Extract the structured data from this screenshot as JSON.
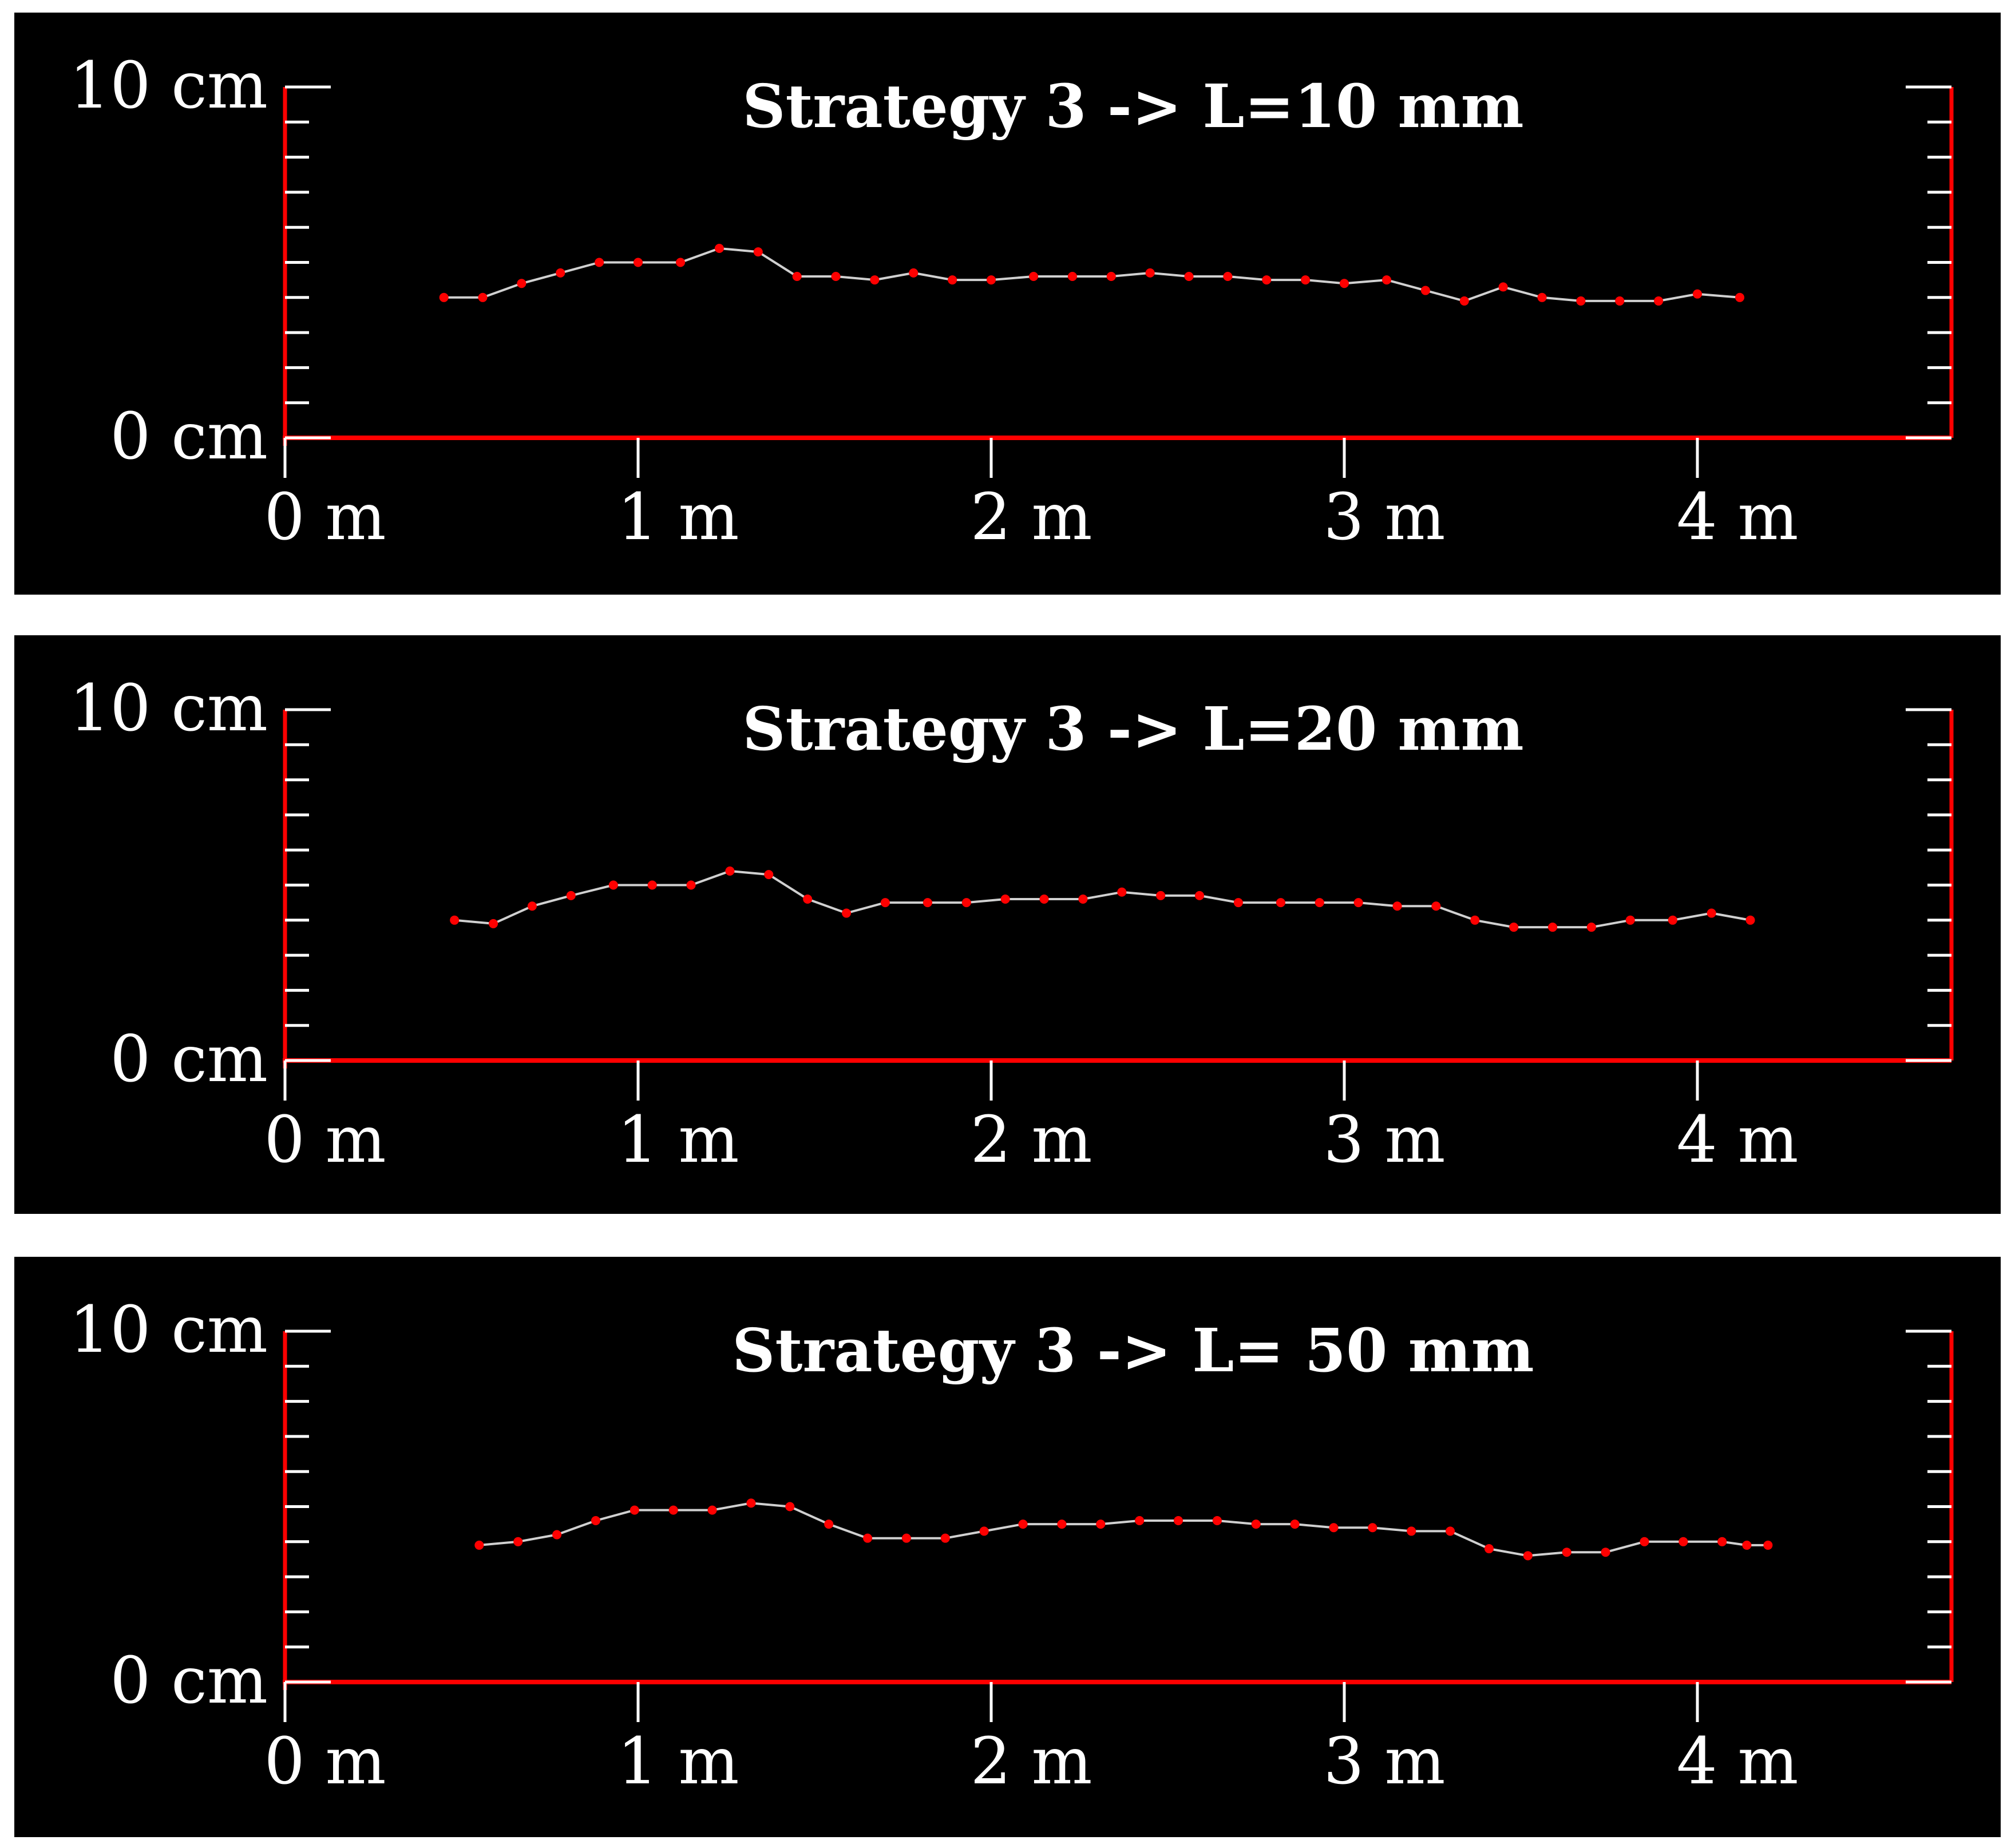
{
  "colors": {
    "background": "#000000",
    "axis": "#ff0000",
    "tick_white": "#ffffff",
    "line": "#d0d0d0",
    "marker": "#ff0000"
  },
  "chart_data": [
    {
      "type": "line",
      "title": "Strategy 3 -> L=10 mm",
      "xlim": [
        0,
        4.75
      ],
      "ylim": [
        0,
        10
      ],
      "x_ticks": [
        "0 m",
        "1 m",
        "2 m",
        "3 m",
        "4 m"
      ],
      "y_ticks": [
        "0 cm",
        "10 cm"
      ],
      "grid": false,
      "series": [
        {
          "x": [
            0.45,
            0.56,
            0.67,
            0.78,
            0.89,
            1.0,
            1.12,
            1.23,
            1.34,
            1.45,
            1.56,
            1.67,
            1.78,
            1.89,
            2.0,
            2.12,
            2.23,
            2.34,
            2.45,
            2.56,
            2.67,
            2.78,
            2.89,
            3.0,
            3.12,
            3.23,
            3.34,
            3.45,
            3.56,
            3.67,
            3.78,
            3.89,
            4.0,
            4.12
          ],
          "y": [
            4.0,
            4.0,
            4.4,
            4.7,
            5.0,
            5.0,
            5.0,
            5.4,
            5.3,
            4.6,
            4.6,
            4.5,
            4.7,
            4.5,
            4.5,
            4.6,
            4.6,
            4.6,
            4.7,
            4.6,
            4.6,
            4.5,
            4.5,
            4.4,
            4.5,
            4.2,
            3.9,
            4.3,
            4.0,
            3.9,
            3.9,
            3.9,
            4.1,
            4.0
          ]
        }
      ]
    },
    {
      "type": "line",
      "title": "Strategy 3 -> L=20 mm",
      "xlim": [
        0,
        4.75
      ],
      "ylim": [
        0,
        10
      ],
      "x_ticks": [
        "0 m",
        "1 m",
        "2 m",
        "3 m",
        "4 m"
      ],
      "y_ticks": [
        "0 cm",
        "10 cm"
      ],
      "grid": false,
      "series": [
        {
          "x": [
            0.48,
            0.59,
            0.7,
            0.81,
            0.93,
            1.04,
            1.15,
            1.26,
            1.37,
            1.48,
            1.59,
            1.7,
            1.82,
            1.93,
            2.04,
            2.15,
            2.26,
            2.37,
            2.48,
            2.59,
            2.7,
            2.82,
            2.93,
            3.04,
            3.15,
            3.26,
            3.37,
            3.48,
            3.59,
            3.7,
            3.81,
            3.93,
            4.04,
            4.15
          ],
          "y": [
            4.0,
            3.9,
            4.4,
            4.7,
            5.0,
            5.0,
            5.0,
            5.4,
            5.3,
            4.6,
            4.2,
            4.5,
            4.5,
            4.5,
            4.6,
            4.6,
            4.6,
            4.8,
            4.7,
            4.7,
            4.5,
            4.5,
            4.5,
            4.5,
            4.4,
            4.4,
            4.0,
            3.8,
            3.8,
            3.8,
            4.0,
            4.0,
            4.2,
            4.0
          ]
        }
      ]
    },
    {
      "type": "line",
      "title": "Strategy 3 -> L= 50 mm",
      "xlim": [
        0,
        4.75
      ],
      "ylim": [
        0,
        10
      ],
      "x_ticks": [
        "0 m",
        "1 m",
        "2 m",
        "3 m",
        "4 m"
      ],
      "y_ticks": [
        "0 cm",
        "10 cm"
      ],
      "grid": false,
      "series": [
        {
          "x": [
            0.55,
            0.66,
            0.77,
            0.88,
            0.99,
            1.1,
            1.21,
            1.32,
            1.43,
            1.54,
            1.65,
            1.76,
            1.87,
            1.98,
            2.09,
            2.2,
            2.31,
            2.42,
            2.53,
            2.64,
            2.75,
            2.86,
            2.97,
            3.08,
            3.19,
            3.3,
            3.41,
            3.52,
            3.63,
            3.74,
            3.85,
            3.96,
            4.07,
            4.14,
            4.2
          ],
          "y": [
            3.9,
            4.0,
            4.2,
            4.6,
            4.9,
            4.9,
            4.9,
            5.1,
            5.0,
            4.5,
            4.1,
            4.1,
            4.1,
            4.3,
            4.5,
            4.5,
            4.5,
            4.6,
            4.6,
            4.6,
            4.5,
            4.5,
            4.4,
            4.4,
            4.3,
            4.3,
            3.8,
            3.6,
            3.7,
            3.7,
            4.0,
            4.0,
            4.0,
            3.9,
            3.9
          ]
        }
      ]
    }
  ]
}
